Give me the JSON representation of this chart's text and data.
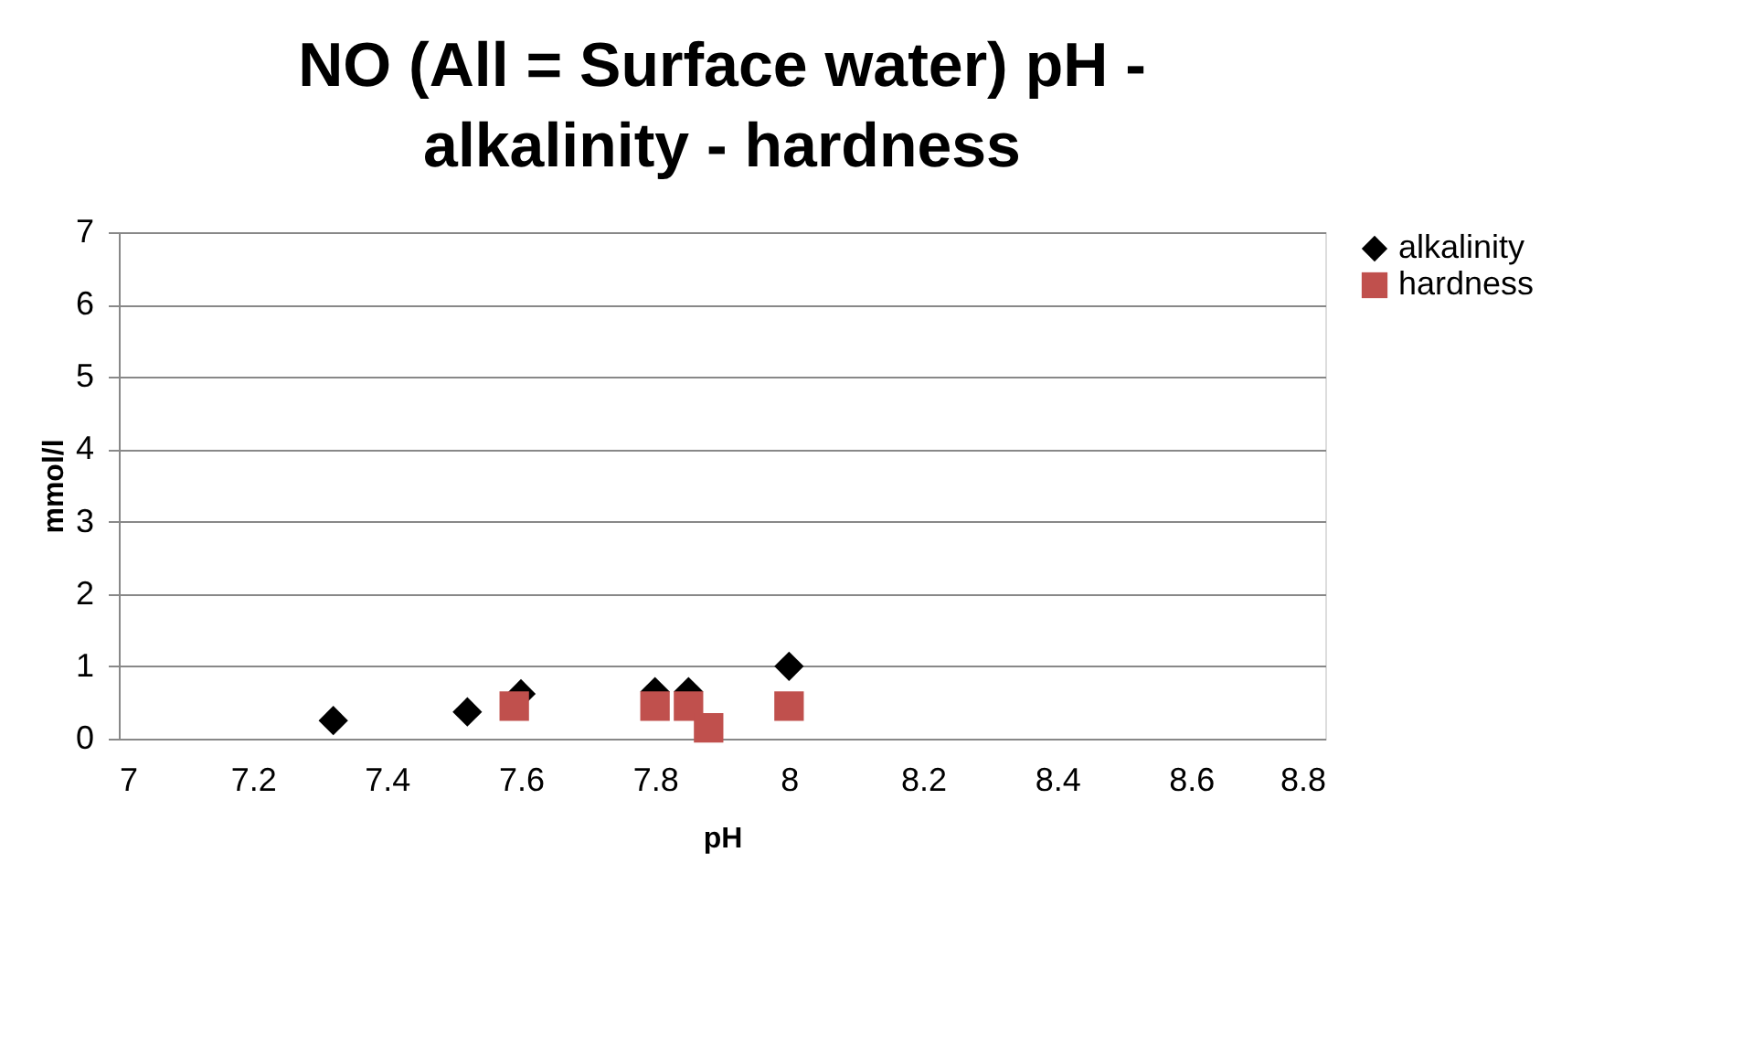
{
  "chart_data": {
    "type": "scatter",
    "title": "NO (All = Surface water) pH - alkalinity - hardness",
    "xlabel": "pH",
    "ylabel": "mmol/l",
    "xlim": [
      7,
      8.8
    ],
    "xticks": [
      7,
      7.2,
      7.4,
      7.6,
      7.8,
      8,
      8.2,
      8.4,
      8.6,
      8.8
    ],
    "ylim": [
      0,
      7
    ],
    "yticks": [
      0,
      1,
      2,
      3,
      4,
      5,
      6,
      7
    ],
    "grid": "y",
    "legend": "right",
    "series": [
      {
        "name": "alkalinity",
        "color": "#000000",
        "marker": "diamond",
        "x": [
          7.32,
          7.52,
          7.6,
          7.8,
          7.85,
          8.0
        ],
        "values": [
          0.25,
          0.37,
          0.62,
          0.65,
          0.65,
          1.0
        ]
      },
      {
        "name": "hardness",
        "color": "#c0504d",
        "marker": "square",
        "x": [
          7.59,
          7.8,
          7.85,
          7.88,
          8.0
        ],
        "values": [
          0.45,
          0.45,
          0.45,
          0.15,
          0.45
        ]
      }
    ]
  }
}
